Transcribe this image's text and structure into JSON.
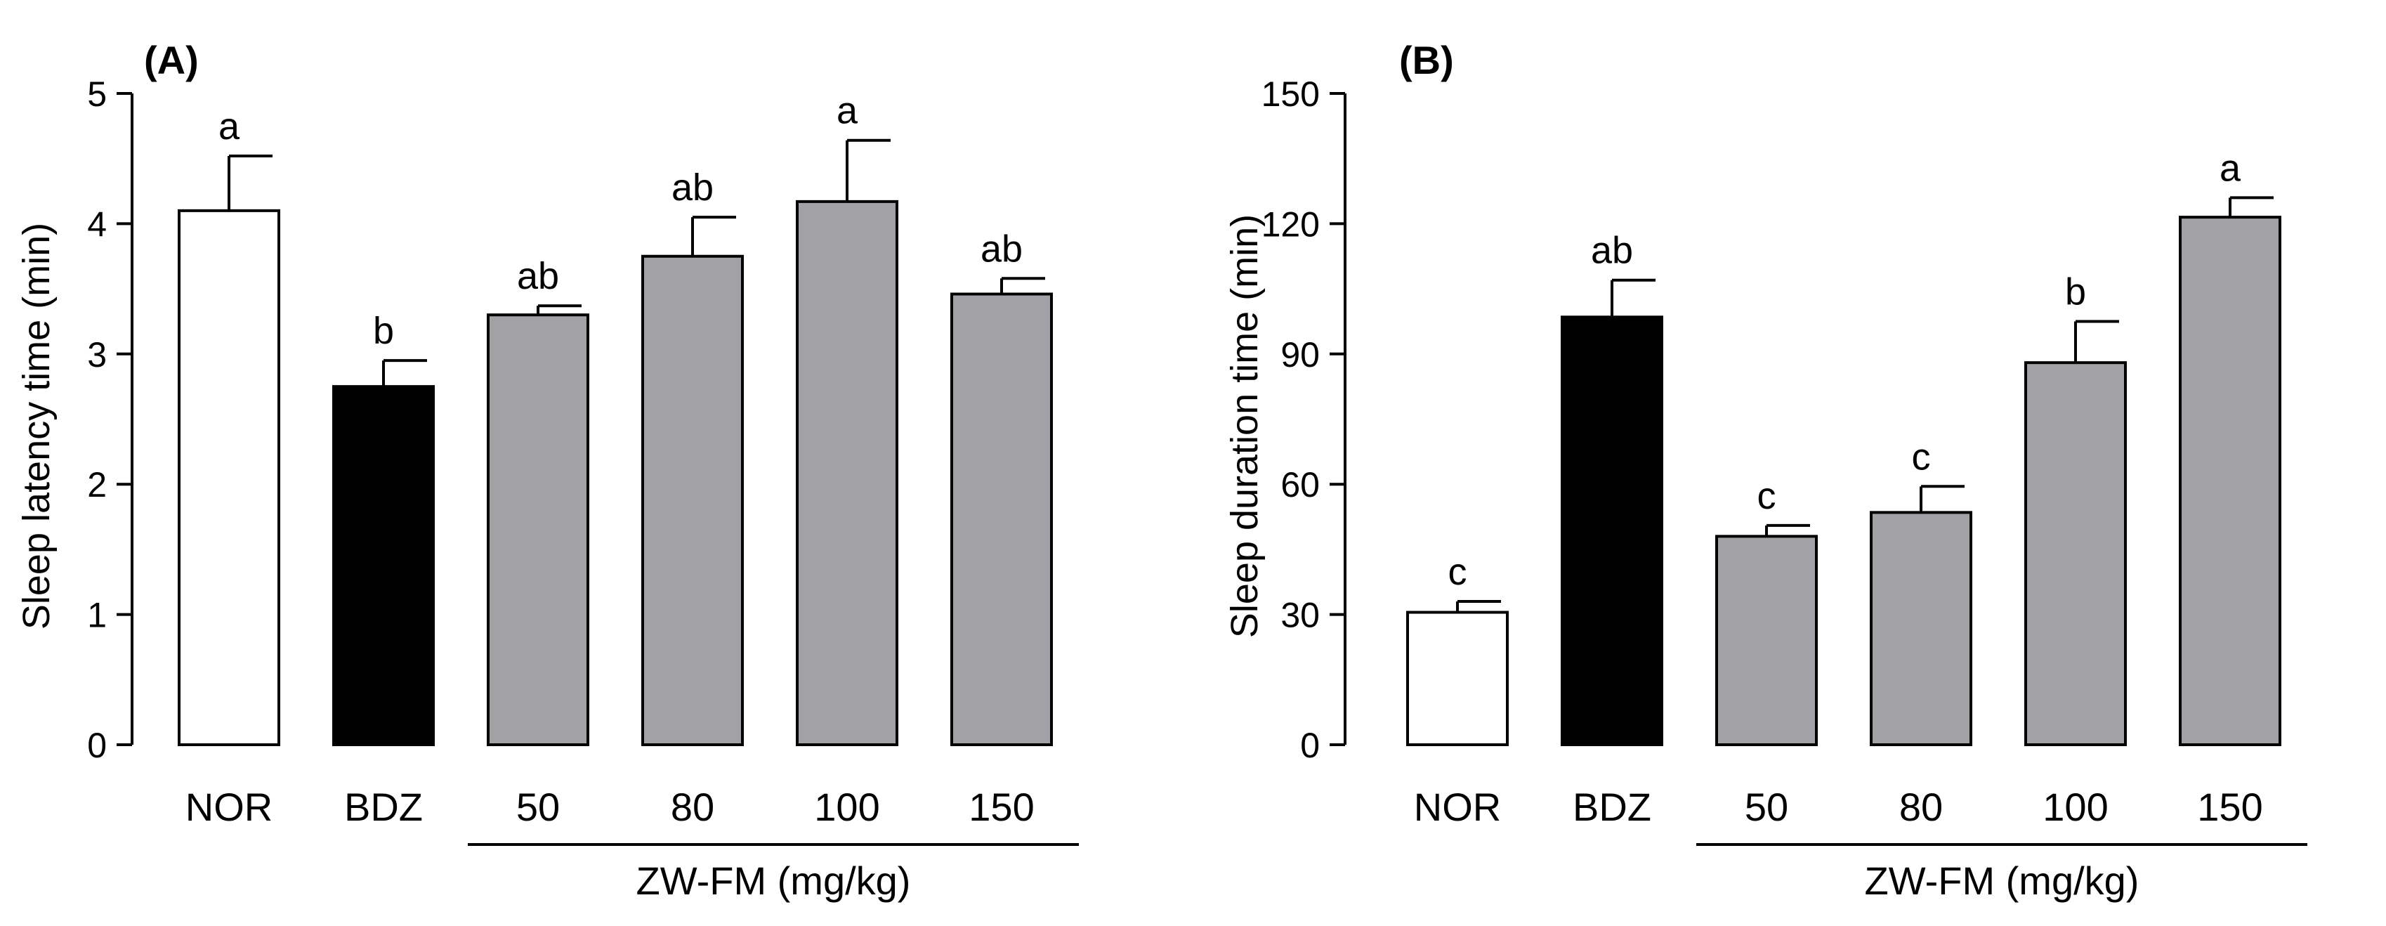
{
  "chart_data": [
    {
      "type": "bar",
      "panel_label": "(A)",
      "title": "",
      "xlabel": "",
      "ylabel": "Sleep latency time (min)",
      "ylim": [
        0,
        5
      ],
      "yticks": [
        "0",
        "1",
        "2",
        "3",
        "4",
        "5"
      ],
      "categories": [
        "NOR",
        "BDZ",
        "50",
        "80",
        "100",
        "150"
      ],
      "values": [
        4.1,
        2.75,
        3.3,
        3.75,
        4.17,
        3.46
      ],
      "errors": [
        0.42,
        0.2,
        0.07,
        0.3,
        0.47,
        0.12
      ],
      "significance_letters": [
        "a",
        "b",
        "ab",
        "ab",
        "a",
        "ab"
      ],
      "bar_colors": [
        "#ffffff",
        "#000000",
        "#a1a1a6",
        "#a1a1a6",
        "#a1a1a6",
        "#a1a1a6"
      ],
      "group_label": "ZW-FM (mg/kg)",
      "group_categories": [
        "50",
        "80",
        "100",
        "150"
      ]
    },
    {
      "type": "bar",
      "panel_label": "(B)",
      "title": "",
      "xlabel": "",
      "ylabel": "Sleep duration time (min)",
      "ylim": [
        0,
        150
      ],
      "yticks": [
        "0",
        "30",
        "60",
        "90",
        "120",
        "150"
      ],
      "categories": [
        "NOR",
        "BDZ",
        "50",
        "80",
        "100",
        "150"
      ],
      "values": [
        30.5,
        98.5,
        48.0,
        53.5,
        88.0,
        121.5
      ],
      "errors": [
        2.5,
        8.5,
        2.5,
        6.0,
        9.5,
        4.5
      ],
      "significance_letters": [
        "c",
        "ab",
        "c",
        "c",
        "b",
        "a"
      ],
      "bar_colors": [
        "#ffffff",
        "#000000",
        "#a1a1a6",
        "#a1a1a6",
        "#a1a1a6",
        "#a1a1a6"
      ],
      "group_label": "ZW-FM (mg/kg)",
      "group_categories": [
        "50",
        "80",
        "100",
        "150"
      ]
    }
  ]
}
